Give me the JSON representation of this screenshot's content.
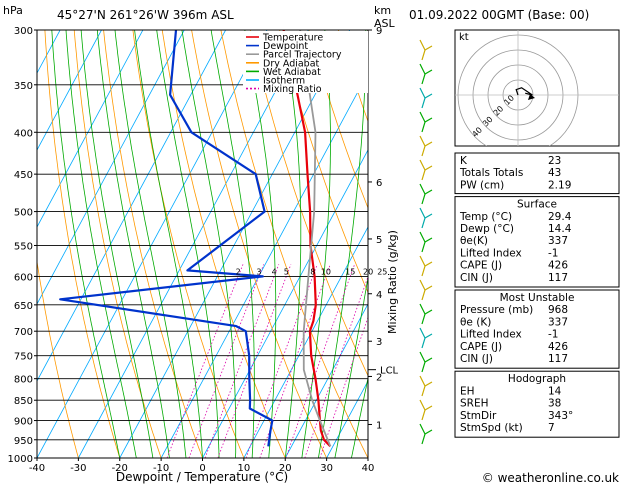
{
  "header": {
    "hpa_label": "hPa",
    "location": "45°27'N  261°26'W  396m  ASL",
    "km_label": "km",
    "asl_label": "ASL",
    "datetime": "01.09.2022  00GMT  (Base: 00)"
  },
  "footer": {
    "copyright": "© weatheronline.co.uk"
  },
  "chart_data": [
    {
      "type": "line",
      "subtype": "skew-t",
      "xlabel": "Dewpoint / Temperature (°C)",
      "ylabel": "hPa",
      "right_axis_label": "Mixing Ratio (g/kg)",
      "xlim": [
        -40,
        40
      ],
      "ylim": [
        1000,
        300
      ],
      "y_scale": "log",
      "x_ticks": [
        -40,
        -30,
        -20,
        -10,
        0,
        10,
        20,
        30,
        40
      ],
      "y_ticks": [
        300,
        350,
        400,
        450,
        500,
        550,
        600,
        650,
        700,
        750,
        800,
        850,
        900,
        950,
        1000
      ],
      "km_ticks": [
        {
          "p": 300,
          "label": "9"
        },
        {
          "p": 460,
          "label": "6"
        },
        {
          "p": 540,
          "label": "5"
        },
        {
          "p": 630,
          "label": "4"
        },
        {
          "p": 720,
          "label": "3"
        },
        {
          "p": 795,
          "label": "2"
        },
        {
          "p": 910,
          "label": "1"
        }
      ],
      "lcl": {
        "p": 780,
        "label": "LCL"
      },
      "mixing_ratio_labels": [
        "2",
        "3",
        "4",
        "5",
        "8",
        "10",
        "15",
        "20",
        "25"
      ],
      "mixing_ratio_values": [
        2,
        3,
        4,
        5,
        8,
        10,
        15,
        20,
        25
      ],
      "legend": [
        "Temperature",
        "Dewpoint",
        "Parcel Trajectory",
        "Dry Adiabat",
        "Wet Adiabat",
        "Isotherm",
        "Mixing Ratio"
      ],
      "legend_colors": [
        "#e8000b",
        "#0033cc",
        "#999999",
        "#ff9900",
        "#00aa00",
        "#00aaff",
        "#dd00aa"
      ],
      "series": [
        {
          "name": "Temperature",
          "color": "#e8000b",
          "points": [
            {
              "p": 968,
              "t": 29.4
            },
            {
              "p": 950,
              "t": 27.0
            },
            {
              "p": 925,
              "t": 25.0
            },
            {
              "p": 900,
              "t": 23.5
            },
            {
              "p": 850,
              "t": 20.5
            },
            {
              "p": 800,
              "t": 17.0
            },
            {
              "p": 750,
              "t": 13.0
            },
            {
              "p": 700,
              "t": 9.5
            },
            {
              "p": 680,
              "t": 9.0
            },
            {
              "p": 650,
              "t": 7.5
            },
            {
              "p": 600,
              "t": 3.5
            },
            {
              "p": 550,
              "t": -1.5
            },
            {
              "p": 500,
              "t": -6.0
            },
            {
              "p": 450,
              "t": -11.5
            },
            {
              "p": 400,
              "t": -17.5
            },
            {
              "p": 350,
              "t": -26.0
            },
            {
              "p": 300,
              "t": -36.0
            }
          ]
        },
        {
          "name": "Dewpoint",
          "color": "#0033cc",
          "points": [
            {
              "p": 968,
              "t": 14.4
            },
            {
              "p": 930,
              "t": 13.0
            },
            {
              "p": 900,
              "t": 12.0
            },
            {
              "p": 870,
              "t": 5.0
            },
            {
              "p": 850,
              "t": 4.0
            },
            {
              "p": 800,
              "t": 1.0
            },
            {
              "p": 750,
              "t": -2.0
            },
            {
              "p": 700,
              "t": -6.0
            },
            {
              "p": 690,
              "t": -9.0
            },
            {
              "p": 640,
              "t": -55.0
            },
            {
              "p": 600,
              "t": -9.0
            },
            {
              "p": 590,
              "t": -28.0
            },
            {
              "p": 500,
              "t": -17.0
            },
            {
              "p": 450,
              "t": -24.0
            },
            {
              "p": 400,
              "t": -45.0
            },
            {
              "p": 360,
              "t": -55.0
            },
            {
              "p": 300,
              "t": -62.0
            }
          ]
        },
        {
          "name": "Parcel Trajectory",
          "color": "#999999",
          "points": [
            {
              "p": 968,
              "t": 29.4
            },
            {
              "p": 900,
              "t": 23.5
            },
            {
              "p": 850,
              "t": 19.0
            },
            {
              "p": 780,
              "t": 13.0
            },
            {
              "p": 700,
              "t": 8.0
            },
            {
              "p": 600,
              "t": 2.0
            },
            {
              "p": 500,
              "t": -5.0
            },
            {
              "p": 400,
              "t": -15.0
            },
            {
              "p": 300,
              "t": -32.0
            }
          ]
        }
      ]
    },
    {
      "type": "scatter",
      "subtype": "hodograph",
      "label": "kt",
      "ring_labels": [
        "10",
        "20",
        "30",
        "40"
      ],
      "points": [
        {
          "u": 0,
          "v": 0
        },
        {
          "u": -1,
          "v": 3
        },
        {
          "u": 2,
          "v": 4
        },
        {
          "u": 5,
          "v": 2
        },
        {
          "u": 8,
          "v": 0
        },
        {
          "u": 4,
          "v": 1
        }
      ],
      "storm_motion": {
        "dir": 343,
        "spd": 7
      }
    }
  ],
  "indices": {
    "top": [
      {
        "label": "K",
        "value": "23"
      },
      {
        "label": "Totals Totals",
        "value": "43"
      },
      {
        "label": "PW (cm)",
        "value": "2.19"
      }
    ],
    "surface": {
      "title": "Surface",
      "rows": [
        {
          "label": "Temp (°C)",
          "value": "29.4"
        },
        {
          "label": "Dewp (°C)",
          "value": "14.4"
        },
        {
          "label": "θe(K)",
          "value": "337"
        },
        {
          "label": "Lifted Index",
          "value": "-1"
        },
        {
          "label": "CAPE (J)",
          "value": "426"
        },
        {
          "label": "CIN (J)",
          "value": "117"
        }
      ]
    },
    "most_unstable": {
      "title": "Most Unstable",
      "rows": [
        {
          "label": "Pressure (mb)",
          "value": "968"
        },
        {
          "label": "θe (K)",
          "value": "337"
        },
        {
          "label": "Lifted Index",
          "value": "-1"
        },
        {
          "label": "CAPE (J)",
          "value": "426"
        },
        {
          "label": "CIN (J)",
          "value": "117"
        }
      ]
    },
    "hodograph": {
      "title": "Hodograph",
      "rows": [
        {
          "label": "EH",
          "value": "14"
        },
        {
          "label": "SREH",
          "value": "38"
        },
        {
          "label": "StmDir",
          "value": "343°"
        },
        {
          "label": "StmSpd (kt)",
          "value": "7"
        }
      ]
    }
  }
}
